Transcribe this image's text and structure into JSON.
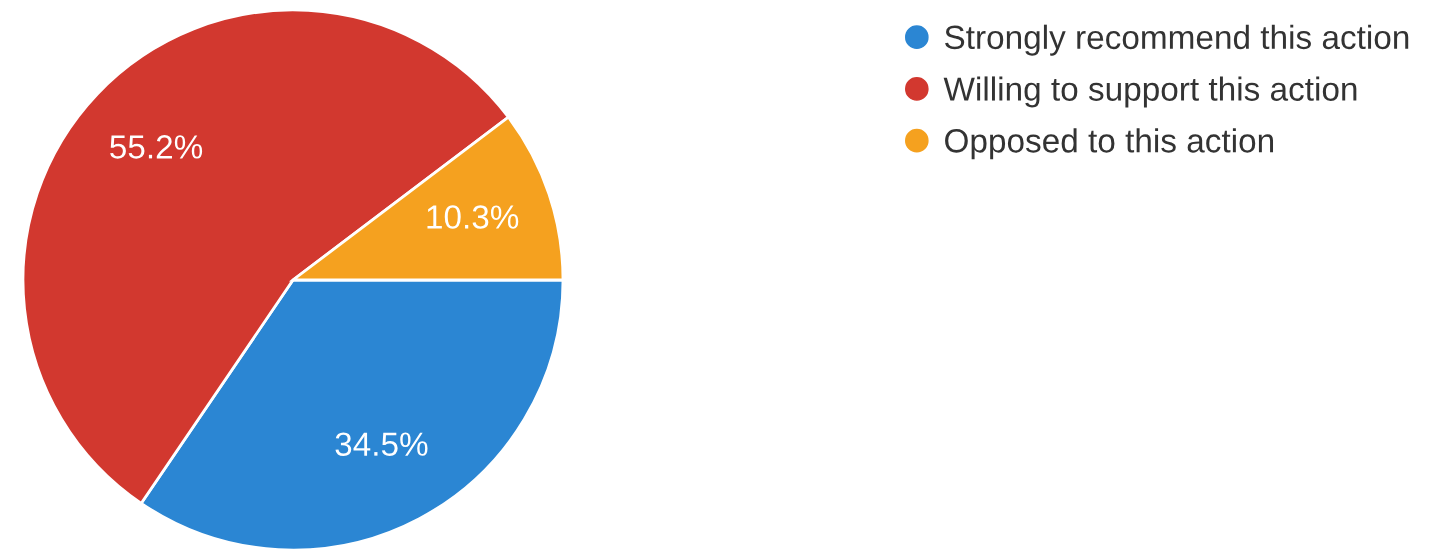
{
  "chart_data": {
    "type": "pie",
    "categories": [
      "Strongly recommend this action",
      "Willing to support this action",
      "Opposed to this action"
    ],
    "values": [
      34.5,
      55.2,
      10.3
    ],
    "value_labels": [
      "34.5%",
      "55.2%",
      "10.3%"
    ],
    "colors": [
      "#2b86d3",
      "#d2382f",
      "#f5a11f"
    ],
    "legend": "top right"
  }
}
